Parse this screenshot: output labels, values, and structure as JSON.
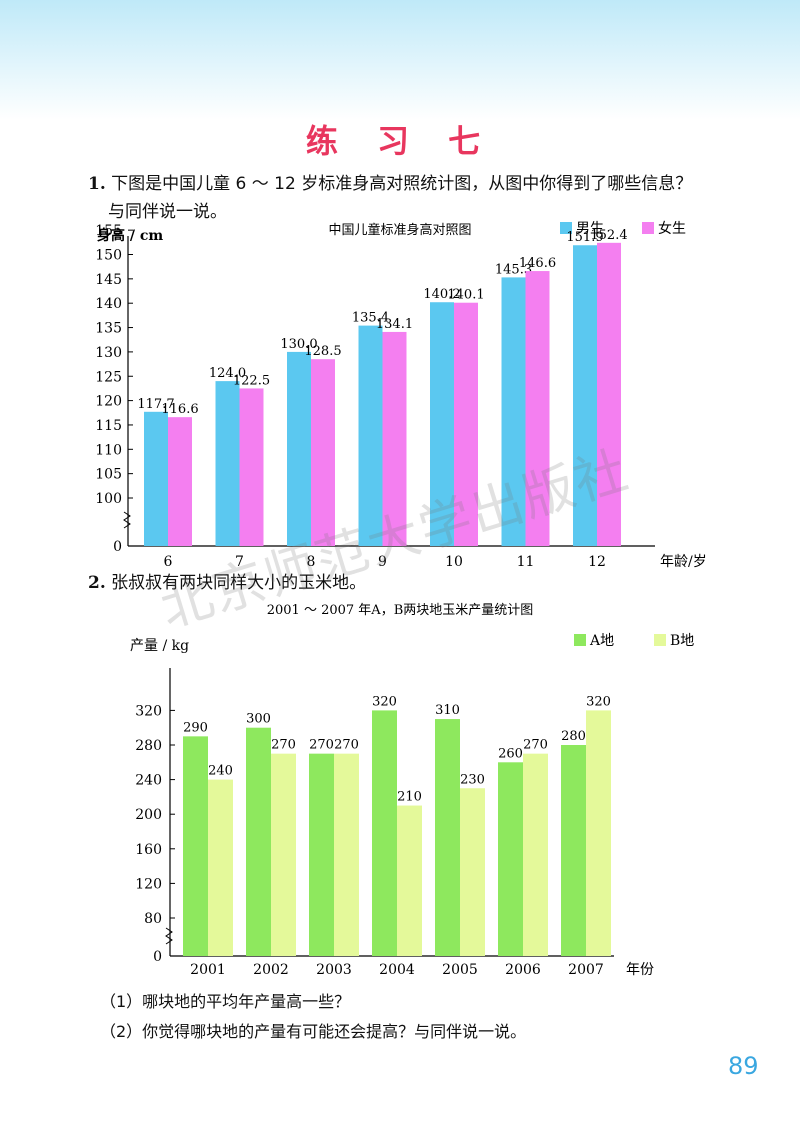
{
  "page": {
    "title": "练 习 七",
    "q1_number": "1.",
    "q1_text_line1": "下图是中国儿童 6 ～ 12 岁标准身高对照统计图，从图中你得到了哪些信息？",
    "q1_text_line2": "与同伴说一说。",
    "q2_number": "2.",
    "q2_text": "张叔叔有两块同样大小的玉米地。",
    "sub1": "（1）哪块地的平均年产量高一些？",
    "sub2": "（2）你觉得哪块地的产量有可能还会提高？与同伴说一说。",
    "page_number": "89",
    "watermark": "北京师范大学出版社"
  },
  "colors": {
    "boy": "#5bc8f0",
    "girl": "#f47ff0",
    "a": "#8ee85e",
    "b": "#e4f99a"
  },
  "chart_data": [
    {
      "type": "bar",
      "title": "中国儿童标准身高对照图",
      "ylabel": "身高 / cm",
      "xlabel": "年龄/岁",
      "categories": [
        "6",
        "7",
        "8",
        "9",
        "10",
        "11",
        "12"
      ],
      "series": [
        {
          "name": "男生",
          "values": [
            117.7,
            124.0,
            130.0,
            135.4,
            140.2,
            145.3,
            151.9
          ]
        },
        {
          "name": "女生",
          "values": [
            116.6,
            122.5,
            128.5,
            134.1,
            140.1,
            146.6,
            152.4
          ]
        }
      ],
      "value_labels": [
        [
          "117.7",
          "124.0",
          "130.0",
          "135.4",
          "140.2",
          "145.3",
          "151.9"
        ],
        [
          "116.6",
          "122.5",
          "128.5",
          "134.1",
          "140.1",
          "146.6",
          "152.4"
        ]
      ],
      "yticks": [
        "0",
        "100",
        "105",
        "110",
        "115",
        "120",
        "125",
        "130",
        "135",
        "140",
        "145",
        "150",
        "155"
      ],
      "axis_break": true,
      "ylim": [
        97,
        157
      ],
      "legend_position": "top-right"
    },
    {
      "type": "bar",
      "title": "2001 ～ 2007 年A，B两块地玉米产量统计图",
      "ylabel": "产量 / kg",
      "xlabel": "年份",
      "categories": [
        "2001",
        "2002",
        "2003",
        "2004",
        "2005",
        "2006",
        "2007"
      ],
      "series": [
        {
          "name": "A地",
          "values": [
            290,
            300,
            270,
            320,
            310,
            260,
            280
          ]
        },
        {
          "name": "B地",
          "values": [
            240,
            270,
            270,
            210,
            230,
            270,
            320
          ]
        }
      ],
      "yticks": [
        "0",
        "80",
        "120",
        "160",
        "200",
        "240",
        "280",
        "320"
      ],
      "axis_break": true,
      "ylim": [
        60,
        360
      ],
      "legend_position": "top-right"
    }
  ]
}
